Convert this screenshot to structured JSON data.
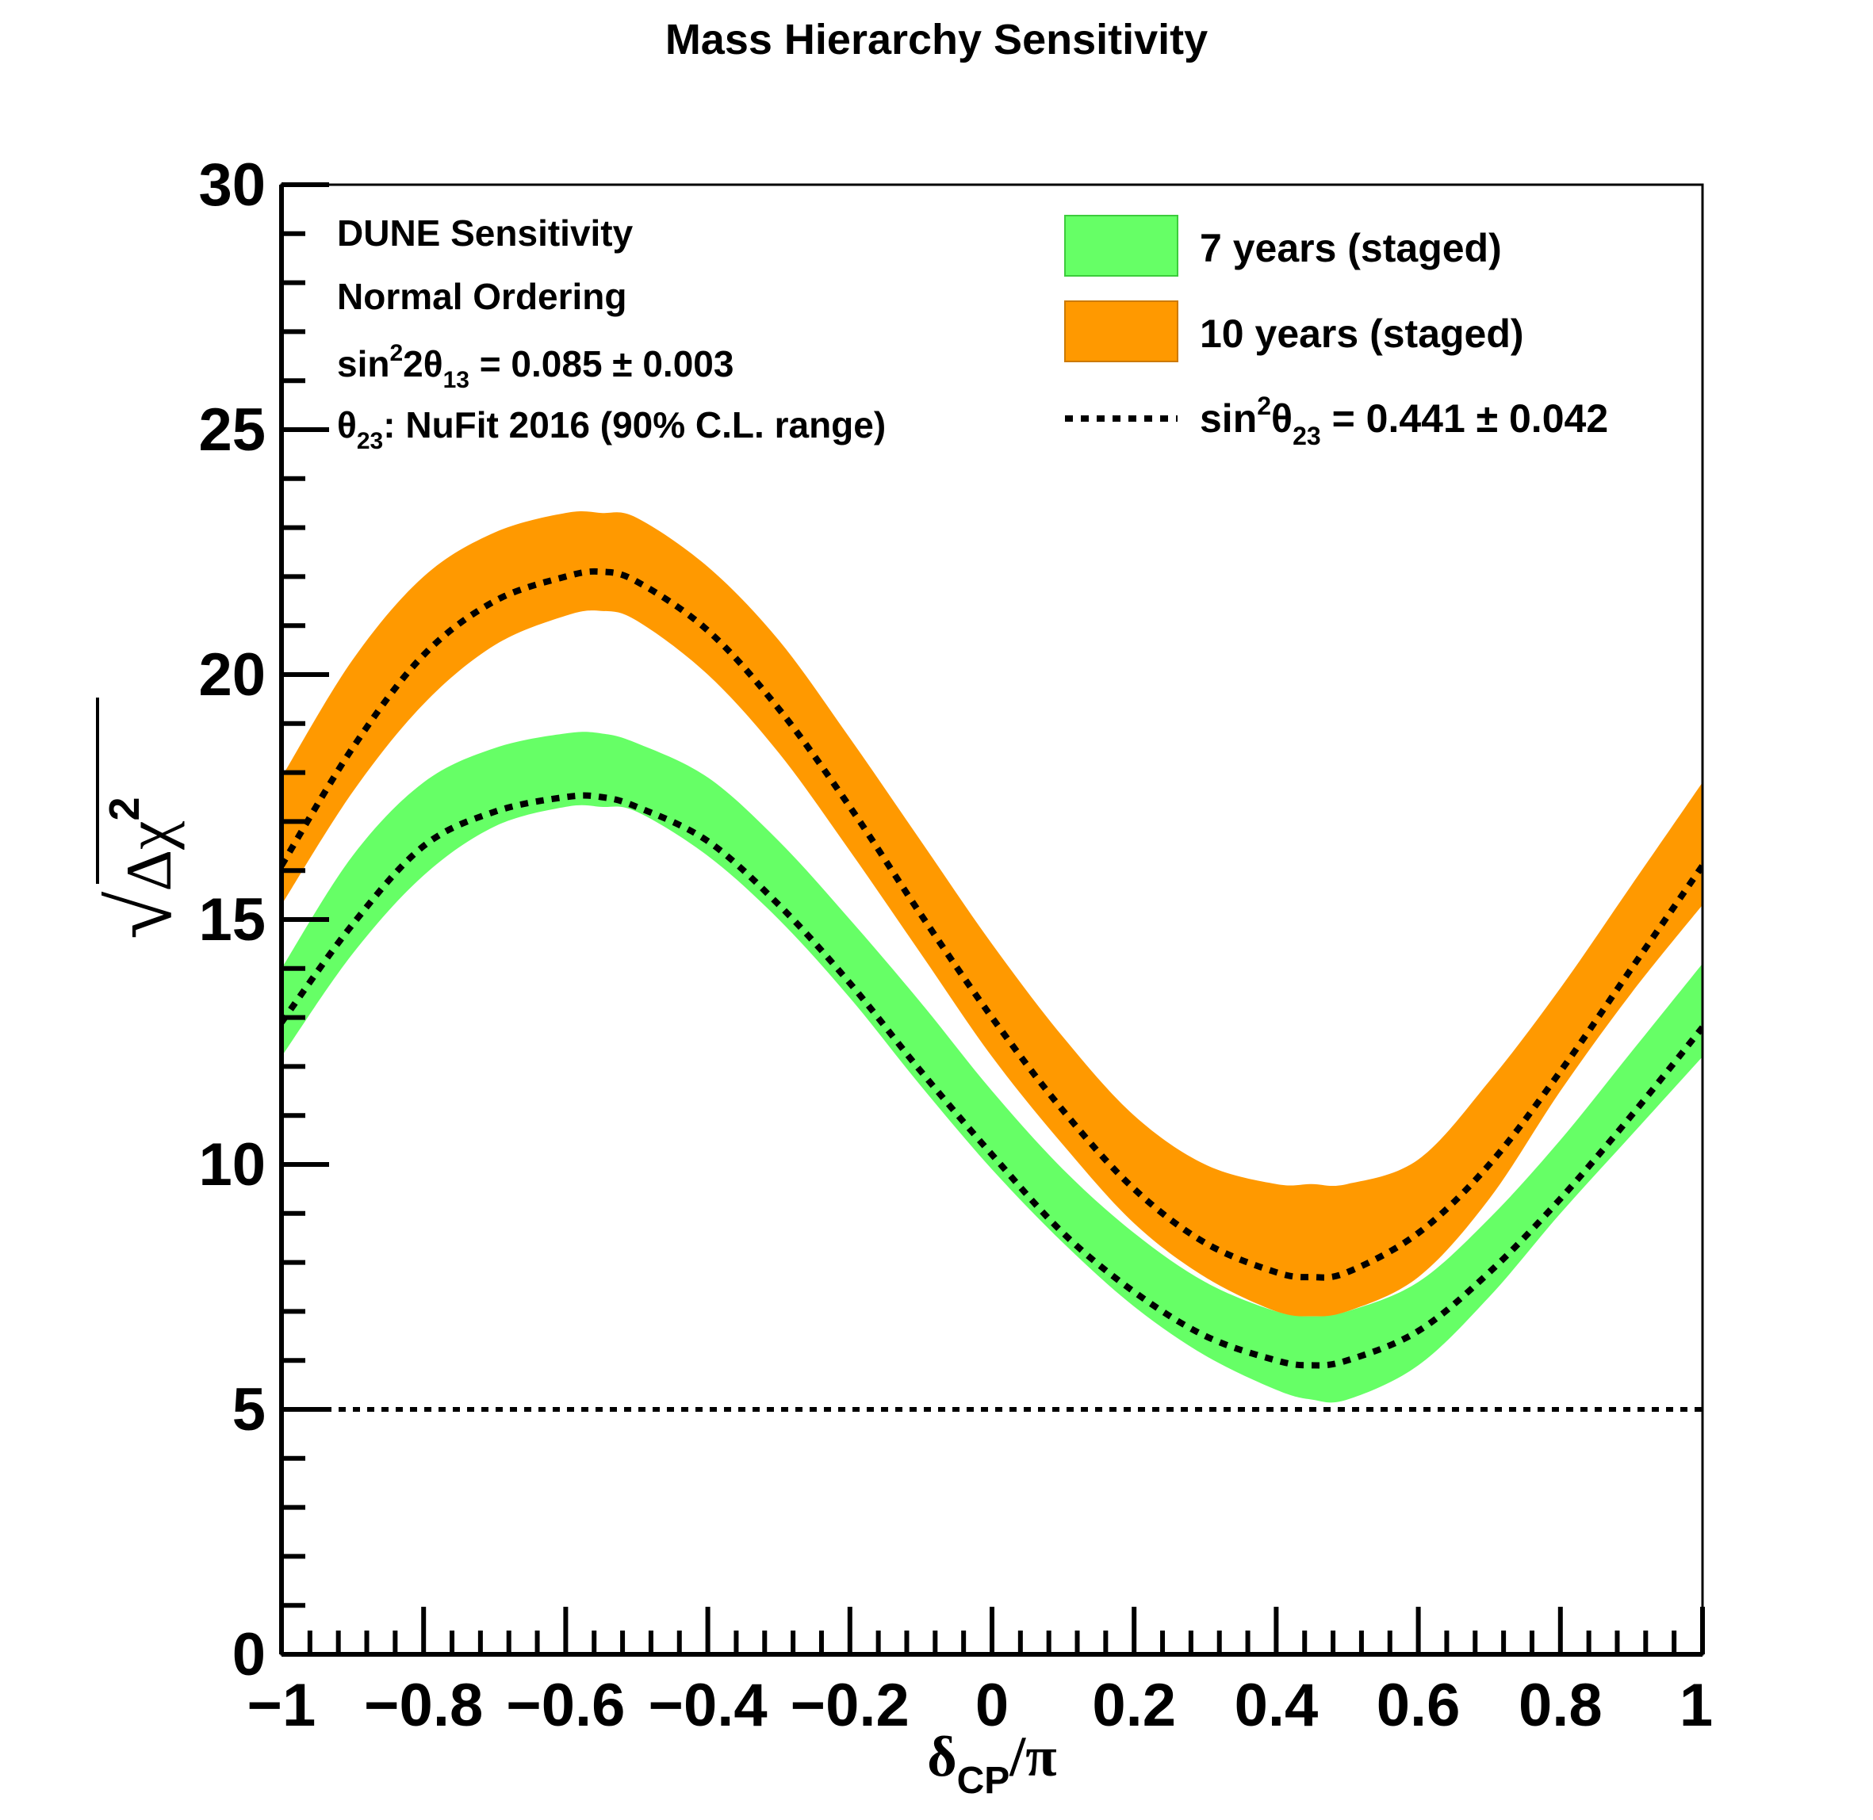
{
  "chart_data": {
    "type": "area",
    "title": "Mass Hierarchy Sensitivity",
    "xlabel": {
      "main": "δ",
      "sub": "CP",
      "tail": "/π"
    },
    "ylabel": {
      "radical": "√",
      "main": "Δχ",
      "sup": "2"
    },
    "xlim": [
      -1,
      1
    ],
    "ylim": [
      0,
      30
    ],
    "x_ticks": [
      -1,
      -0.8,
      -0.6,
      -0.4,
      -0.2,
      0,
      0.2,
      0.4,
      0.6,
      0.8,
      1
    ],
    "x_tick_labels": [
      "−1",
      "−0.8",
      "−0.6",
      "−0.4",
      "−0.2",
      "0",
      "0.2",
      "0.4",
      "0.6",
      "0.8",
      "1"
    ],
    "y_ticks": [
      0,
      5,
      10,
      15,
      20,
      25,
      30
    ],
    "y_tick_labels": [
      "0",
      "5",
      "10",
      "15",
      "20",
      "25",
      "30"
    ],
    "grid": false,
    "legend_position": "top-right",
    "legend": [
      {
        "type": "band",
        "label": "7 years (staged)",
        "color": "#66ff66"
      },
      {
        "type": "band",
        "label": "10 years (staged)",
        "color": "#ff9900"
      },
      {
        "type": "line",
        "pre": "sin",
        "sup": "2",
        "theta": "θ",
        "sub": "23",
        "post": " = 0.441 ± 0.042"
      }
    ],
    "annotation": {
      "line1": "DUNE Sensitivity",
      "line2": "Normal Ordering",
      "line3": {
        "pre": "sin",
        "sup": "2",
        "mid": "2θ",
        "sub": "13",
        "post": " = 0.085  ± 0.003"
      },
      "line4": {
        "theta": "θ",
        "sub": "23",
        "post": ": NuFit 2016 (90% C.L. range)"
      }
    },
    "threshold_line": {
      "y": 5,
      "style": "dotted"
    },
    "x": [
      -1.0,
      -0.9,
      -0.8,
      -0.7,
      -0.6,
      -0.55,
      -0.5,
      -0.4,
      -0.3,
      -0.2,
      -0.1,
      0.0,
      0.1,
      0.2,
      0.3,
      0.4,
      0.45,
      0.5,
      0.6,
      0.7,
      0.8,
      0.9,
      1.0
    ],
    "series": [
      {
        "name": "10 years (staged)",
        "color": "#ff9900",
        "lower": [
          15.3,
          17.6,
          19.4,
          20.6,
          21.2,
          21.3,
          21.1,
          20.0,
          18.4,
          16.4,
          14.3,
          12.2,
          10.4,
          8.8,
          7.7,
          7.0,
          6.9,
          7.0,
          7.7,
          9.3,
          11.5,
          13.5,
          15.3
        ],
        "center": [
          16.1,
          18.5,
          20.4,
          21.5,
          22.0,
          22.1,
          21.9,
          20.9,
          19.3,
          17.3,
          15.1,
          13.0,
          11.1,
          9.5,
          8.4,
          7.8,
          7.7,
          7.8,
          8.6,
          10.0,
          11.9,
          14.0,
          16.1
        ],
        "upper": [
          17.9,
          20.3,
          22.0,
          22.9,
          23.3,
          23.3,
          23.2,
          22.2,
          20.7,
          18.7,
          16.6,
          14.5,
          12.6,
          11.0,
          10.0,
          9.6,
          9.6,
          9.6,
          10.1,
          11.7,
          13.6,
          15.7,
          17.8
        ]
      },
      {
        "name": "7 years (staged)",
        "color": "#66ff66",
        "lower": [
          12.2,
          14.3,
          15.9,
          16.9,
          17.3,
          17.3,
          17.2,
          16.3,
          15.0,
          13.4,
          11.6,
          9.9,
          8.4,
          7.1,
          6.1,
          5.4,
          5.2,
          5.2,
          5.9,
          7.3,
          9.0,
          10.6,
          12.2
        ],
        "center": [
          12.9,
          14.9,
          16.5,
          17.2,
          17.5,
          17.5,
          17.3,
          16.6,
          15.3,
          13.7,
          11.9,
          10.2,
          8.6,
          7.4,
          6.5,
          6.0,
          5.9,
          6.0,
          6.6,
          7.8,
          9.3,
          11.0,
          12.8
        ],
        "upper": [
          14.0,
          16.3,
          17.8,
          18.5,
          18.8,
          18.8,
          18.6,
          17.9,
          16.6,
          15.0,
          13.3,
          11.5,
          9.9,
          8.6,
          7.6,
          7.0,
          6.9,
          7.0,
          7.6,
          8.9,
          10.5,
          12.3,
          14.1
        ]
      }
    ]
  }
}
